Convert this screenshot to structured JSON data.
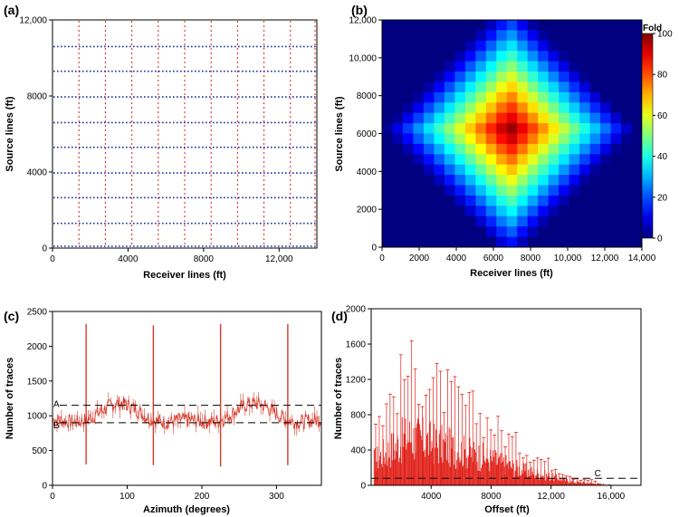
{
  "chart_data": [
    {
      "id": "a",
      "panel_label": "(a)",
      "type": "scatter",
      "subtype": "survey-layout",
      "xlabel": "Receiver lines (ft)",
      "ylabel": "Source lines (ft)",
      "xlim": [
        0,
        14000
      ],
      "ylim": [
        0,
        12000
      ],
      "xticks": [
        0,
        4000,
        8000,
        12000
      ],
      "xtick_labels": [
        "0",
        "4000",
        "8000",
        "12,000"
      ],
      "yticks": [
        0,
        4000,
        8000,
        12000
      ],
      "ytick_labels": [
        "0",
        "4000",
        "8000",
        "12,000"
      ],
      "receiver_lines_x": [
        1400,
        2800,
        4200,
        5600,
        7000,
        8400,
        9800,
        11200,
        12600,
        14000
      ],
      "source_lines_y": [
        0,
        1300,
        2650,
        3950,
        5300,
        6600,
        7950,
        9300,
        10600
      ],
      "colors": {
        "receiver": "#d81e1e",
        "source": "#1f2f9e"
      }
    },
    {
      "id": "b",
      "panel_label": "(b)",
      "type": "heatmap",
      "xlabel": "Receiver lines (ft)",
      "ylabel": "Source lines (ft)",
      "xlim": [
        0,
        14000
      ],
      "ylim": [
        0,
        12000
      ],
      "xticks": [
        0,
        2000,
        4000,
        6000,
        8000,
        10000,
        12000,
        14000
      ],
      "xtick_labels": [
        "0",
        "2000",
        "4000",
        "6000",
        "8000",
        "10,000",
        "12,000",
        "14,000"
      ],
      "yticks": [
        0,
        2000,
        4000,
        6000,
        8000,
        10000,
        12000
      ],
      "ytick_labels": [
        "0",
        "2000",
        "4000",
        "6000",
        "8000",
        "10,000",
        "12,000"
      ],
      "colorbar": {
        "title": "Fold",
        "min": 0,
        "max": 100,
        "ticks": [
          0,
          20,
          40,
          60,
          80,
          100
        ]
      },
      "grid_cells": {
        "nx": 25,
        "ny": 22
      },
      "peak": {
        "x": 6900,
        "y": 6200,
        "value": 100
      }
    },
    {
      "id": "c",
      "panel_label": "(c)",
      "type": "line",
      "xlabel": "Azimuth (degrees)",
      "ylabel": "Number of traces",
      "xlim": [
        0,
        360
      ],
      "ylim": [
        0,
        2500
      ],
      "xticks": [
        0,
        100,
        200,
        300
      ],
      "xtick_labels": [
        "0",
        "100",
        "200",
        "300"
      ],
      "yticks": [
        0,
        500,
        1000,
        1500,
        2000,
        2500
      ],
      "ytick_labels": [
        "0",
        "500",
        "1000",
        "1500",
        "2000",
        "2500"
      ],
      "reference_lines": [
        {
          "label": "A",
          "y": 1150
        },
        {
          "label": "B",
          "y": 900
        }
      ],
      "baseline_level": 1000,
      "spikes": [
        {
          "x": 45,
          "y_high": 2320,
          "y_low": 300
        },
        {
          "x": 135,
          "y_high": 2300,
          "y_low": 290
        },
        {
          "x": 225,
          "y_high": 2320,
          "y_low": 270
        },
        {
          "x": 315,
          "y_high": 2320,
          "y_low": 290
        }
      ],
      "color": "#d63a2a"
    },
    {
      "id": "d",
      "panel_label": "(d)",
      "type": "bar",
      "xlabel": "Offset (ft)",
      "ylabel": "Number of traces",
      "xlim": [
        0,
        18000
      ],
      "ylim": [
        0,
        2000
      ],
      "xticks": [
        4000,
        8000,
        12000,
        16000
      ],
      "xtick_labels": [
        "4000",
        "8000",
        "12,000",
        "16,000"
      ],
      "yticks": [
        0,
        400,
        800,
        1200,
        1600,
        2000
      ],
      "ytick_labels": [
        "0",
        "400",
        "800",
        "1200",
        "1600",
        "2000"
      ],
      "reference_lines": [
        {
          "label": "C",
          "y": 80
        }
      ],
      "envelope": [
        {
          "x": 0,
          "y": 800
        },
        {
          "x": 2500,
          "y": 1700
        },
        {
          "x": 5000,
          "y": 1350
        },
        {
          "x": 8000,
          "y": 900
        },
        {
          "x": 10000,
          "y": 550
        },
        {
          "x": 12000,
          "y": 300
        },
        {
          "x": 13500,
          "y": 120
        },
        {
          "x": 15500,
          "y": 40
        },
        {
          "x": 16500,
          "y": 0
        }
      ],
      "color": "#e02018"
    }
  ]
}
